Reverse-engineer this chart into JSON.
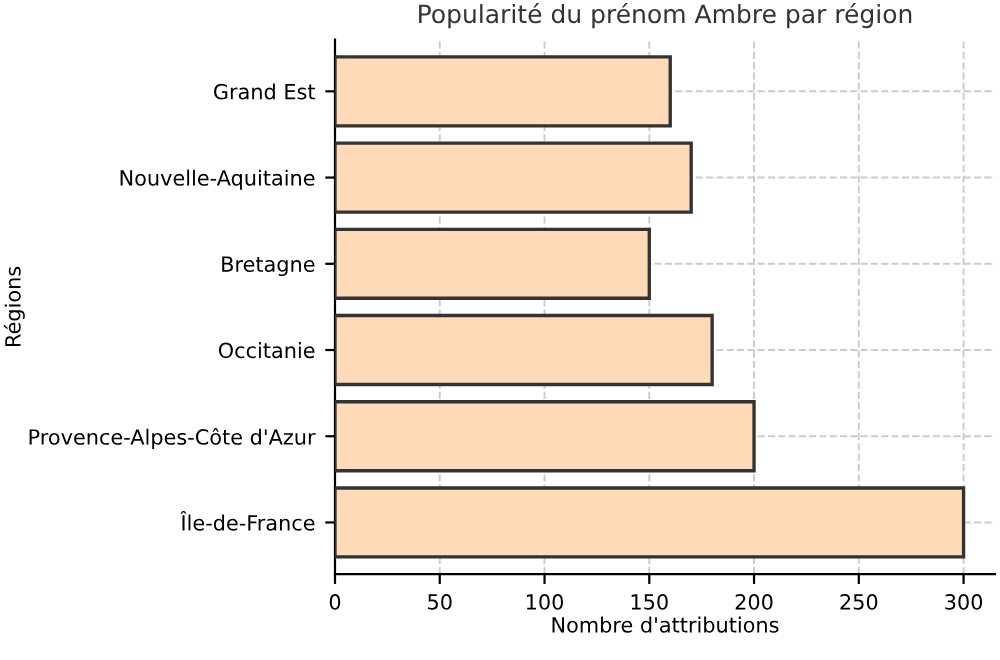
{
  "chart_data": {
    "type": "bar",
    "orientation": "horizontal",
    "title": "Popularité du prénom Ambre par région",
    "xlabel": "Nombre d'attributions",
    "ylabel": "Régions",
    "categories": [
      "Grand Est",
      "Nouvelle-Aquitaine",
      "Bretagne",
      "Occitanie",
      "Provence-Alpes-Côte d'Azur",
      "Île-de-France"
    ],
    "values": [
      160,
      170,
      150,
      180,
      200,
      300
    ],
    "color": "#ffdab9",
    "xlim": [
      0,
      315
    ],
    "xticks": [
      0,
      50,
      100,
      150,
      200,
      250,
      300
    ],
    "grid": true
  }
}
